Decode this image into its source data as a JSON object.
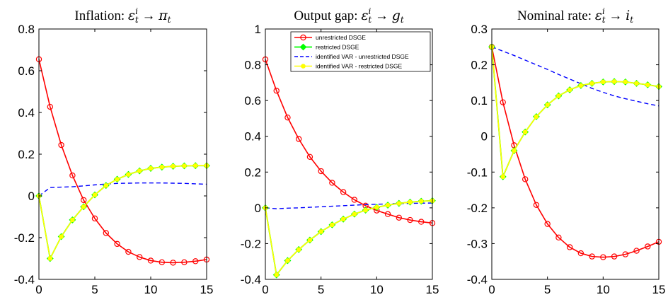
{
  "colors": {
    "unrestricted": "#ff0000",
    "restricted": "#00ff00",
    "restricted_marker_fill": "#00ff00",
    "var_unrestricted": "#0000ff",
    "var_restricted": "#ffff00",
    "background": "#ffffff",
    "axis": "#000000"
  },
  "legend": {
    "items": [
      {
        "label": "unrestricted DSGE",
        "series": "unrestricted"
      },
      {
        "label": "restricted DSGE",
        "series": "restricted"
      },
      {
        "label": "identified VAR - unrestricted DSGE",
        "series": "var_unrestricted"
      },
      {
        "label": "identified VAR - restricted DSGE",
        "series": "var_restricted"
      }
    ]
  },
  "chart_data": [
    {
      "type": "line",
      "title": {
        "prefix": "Inflation:",
        "math_left": "ε",
        "math_sup": "i",
        "math_sub": "t",
        "arrow": "→",
        "math_right": "π",
        "math_right_sub": "t"
      },
      "xlim": [
        0,
        15
      ],
      "ylim": [
        -0.4,
        0.8
      ],
      "xticks": [
        0,
        5,
        10,
        15
      ],
      "xtick_labels": [
        "0",
        "5",
        "10",
        "15"
      ],
      "yticks": [
        -0.4,
        -0.2,
        0,
        0.2,
        0.4,
        0.6,
        0.8
      ],
      "ytick_labels": [
        "-0.4",
        "-0.2",
        "0",
        "0.2",
        "0.4",
        "0.6",
        "0.8"
      ],
      "x": [
        0,
        1,
        2,
        3,
        4,
        5,
        6,
        7,
        8,
        9,
        10,
        11,
        12,
        13,
        14,
        15
      ],
      "series": [
        {
          "key": "unrestricted",
          "values": [
            0.655,
            0.427,
            0.244,
            0.098,
            -0.02,
            -0.108,
            -0.178,
            -0.23,
            -0.268,
            -0.293,
            -0.31,
            -0.318,
            -0.32,
            -0.318,
            -0.313,
            -0.305
          ]
        },
        {
          "key": "restricted",
          "values": [
            0,
            -0.3,
            -0.195,
            -0.115,
            -0.052,
            0.005,
            0.05,
            0.08,
            0.103,
            0.12,
            0.132,
            0.138,
            0.142,
            0.144,
            0.145,
            0.145
          ]
        },
        {
          "key": "var_unrestricted",
          "values": [
            0,
            0.04,
            0.042,
            0.044,
            0.048,
            0.053,
            0.057,
            0.06,
            0.061,
            0.062,
            0.062,
            0.062,
            0.061,
            0.06,
            0.058,
            0.056
          ]
        },
        {
          "key": "var_restricted",
          "values": [
            0,
            -0.3,
            -0.195,
            -0.115,
            -0.052,
            0.005,
            0.05,
            0.08,
            0.103,
            0.12,
            0.132,
            0.138,
            0.142,
            0.144,
            0.145,
            0.145
          ]
        }
      ]
    },
    {
      "type": "line",
      "title": {
        "prefix": "Output gap:",
        "math_left": "ε",
        "math_sup": "i",
        "math_sub": "t",
        "arrow": "→",
        "math_right": "g",
        "math_right_sub": "t"
      },
      "xlim": [
        0,
        15
      ],
      "ylim": [
        -0.4,
        1
      ],
      "xticks": [
        0,
        5,
        10,
        15
      ],
      "xtick_labels": [
        "0",
        "5",
        "10",
        "15"
      ],
      "yticks": [
        -0.4,
        -0.2,
        0,
        0.2,
        0.4,
        0.6,
        0.8,
        1
      ],
      "ytick_labels": [
        "-0.4",
        "-0.2",
        "0",
        "0.2",
        "0.4",
        "0.6",
        "0.8",
        "1"
      ],
      "x": [
        0,
        1,
        2,
        3,
        4,
        5,
        6,
        7,
        8,
        9,
        10,
        11,
        12,
        13,
        14,
        15
      ],
      "series": [
        {
          "key": "unrestricted",
          "values": [
            0.83,
            0.655,
            0.505,
            0.385,
            0.285,
            0.205,
            0.14,
            0.088,
            0.045,
            0.012,
            -0.015,
            -0.035,
            -0.055,
            -0.068,
            -0.078,
            -0.085
          ]
        },
        {
          "key": "restricted",
          "values": [
            0,
            -0.375,
            -0.295,
            -0.233,
            -0.18,
            -0.133,
            -0.095,
            -0.063,
            -0.035,
            -0.013,
            0.003,
            0.015,
            0.025,
            0.032,
            0.037,
            0.04
          ]
        },
        {
          "key": "var_unrestricted",
          "values": [
            0,
            -0.005,
            -0.002,
            0,
            0.003,
            0.006,
            0.009,
            0.012,
            0.015,
            0.018,
            0.02,
            0.022,
            0.024,
            0.025,
            0.026,
            0.027
          ]
        },
        {
          "key": "var_restricted",
          "values": [
            0,
            -0.375,
            -0.295,
            -0.233,
            -0.18,
            -0.133,
            -0.095,
            -0.063,
            -0.035,
            -0.013,
            0.003,
            0.015,
            0.025,
            0.032,
            0.037,
            0.04
          ]
        }
      ]
    },
    {
      "type": "line",
      "title": {
        "prefix": "Nominal rate:",
        "math_left": "ε",
        "math_sup": "i",
        "math_sub": "t",
        "arrow": "→",
        "math_right": "i",
        "math_right_sub": "t"
      },
      "xlim": [
        0,
        15
      ],
      "ylim": [
        -0.4,
        0.3
      ],
      "xticks": [
        0,
        5,
        10,
        15
      ],
      "xtick_labels": [
        "0",
        "5",
        "10",
        "15"
      ],
      "yticks": [
        -0.4,
        -0.3,
        -0.2,
        -0.1,
        0,
        0.1,
        0.2,
        0.3
      ],
      "ytick_labels": [
        "-0.4",
        "-0.3",
        "-0.2",
        "-0.1",
        "0",
        "0.1",
        "0.2",
        "0.3"
      ],
      "x": [
        0,
        1,
        2,
        3,
        4,
        5,
        6,
        7,
        8,
        9,
        10,
        11,
        12,
        13,
        14,
        15
      ],
      "series": [
        {
          "key": "unrestricted",
          "values": [
            0.25,
            0.095,
            -0.025,
            -0.12,
            -0.192,
            -0.245,
            -0.283,
            -0.31,
            -0.327,
            -0.336,
            -0.338,
            -0.336,
            -0.33,
            -0.32,
            -0.308,
            -0.295
          ]
        },
        {
          "key": "restricted",
          "values": [
            0.25,
            -0.113,
            -0.04,
            0.012,
            0.055,
            0.088,
            0.113,
            0.13,
            0.142,
            0.148,
            0.152,
            0.153,
            0.152,
            0.148,
            0.144,
            0.139
          ]
        },
        {
          "key": "var_unrestricted",
          "values": [
            0.25,
            0.238,
            0.226,
            0.213,
            0.2,
            0.187,
            0.173,
            0.16,
            0.147,
            0.134,
            0.123,
            0.113,
            0.105,
            0.098,
            0.091,
            0.085
          ]
        },
        {
          "key": "var_restricted",
          "values": [
            0.25,
            -0.113,
            -0.04,
            0.012,
            0.055,
            0.088,
            0.113,
            0.13,
            0.142,
            0.148,
            0.152,
            0.153,
            0.152,
            0.148,
            0.144,
            0.139
          ]
        }
      ]
    }
  ]
}
